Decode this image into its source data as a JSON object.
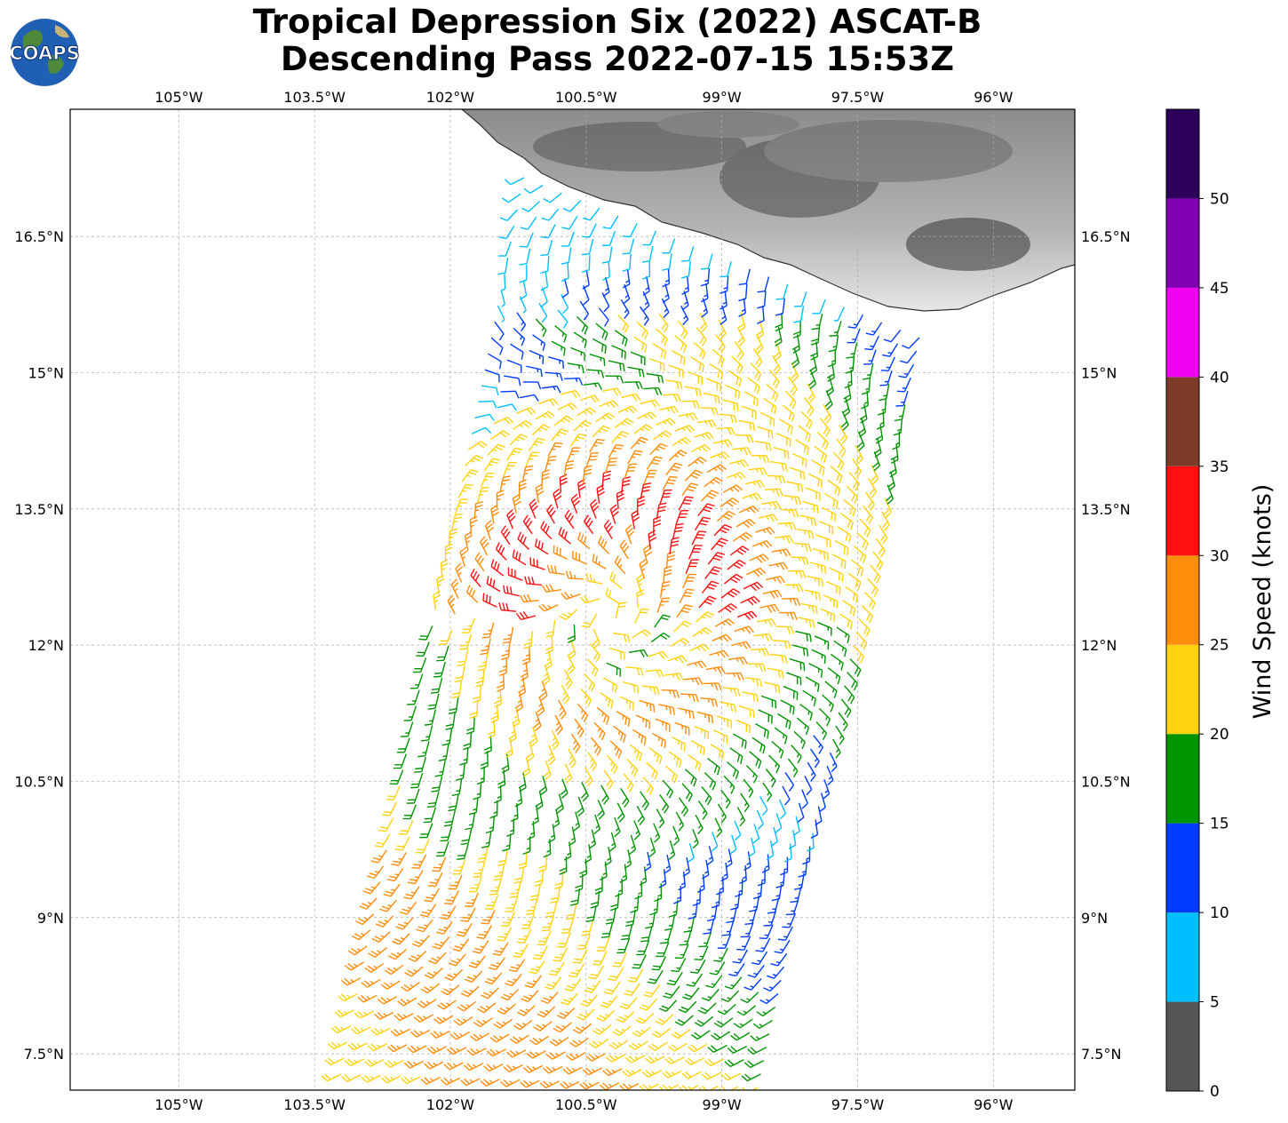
{
  "title": {
    "line1": "Tropical Depression Six (2022) ASCAT-B",
    "line2": "Descending Pass 2022-07-15 15:53Z"
  },
  "logo": {
    "text": "COAPS",
    "icon": "globe-logo"
  },
  "map": {
    "lon_range": [
      -106.2,
      -95.1
    ],
    "lat_range": [
      7.1,
      17.9
    ],
    "lon_ticks": [
      {
        "value": -105,
        "label": "105°W"
      },
      {
        "value": -103.5,
        "label": "103.5°W"
      },
      {
        "value": -102,
        "label": "102°W"
      },
      {
        "value": -100.5,
        "label": "100.5°W"
      },
      {
        "value": -99,
        "label": "99°W"
      },
      {
        "value": -97.5,
        "label": "97.5°W"
      },
      {
        "value": -96,
        "label": "96°W"
      }
    ],
    "lat_ticks": [
      {
        "value": 16.5,
        "label": "16.5°N"
      },
      {
        "value": 15,
        "label": "15°N"
      },
      {
        "value": 13.5,
        "label": "13.5°N"
      },
      {
        "value": 12,
        "label": "12°N"
      },
      {
        "value": 10.5,
        "label": "10.5°N"
      },
      {
        "value": 9,
        "label": "9°N"
      },
      {
        "value": 7.5,
        "label": "7.5°N"
      }
    ],
    "grid": true,
    "land_region": "Mexico coast (top right, terrain shaded)",
    "storm_center": {
      "lon": -100.2,
      "lat": 12.3
    }
  },
  "colorbar": {
    "title": "Wind Speed (knots)",
    "bins": [
      {
        "min": 0,
        "max": 5,
        "color": "#555555"
      },
      {
        "min": 5,
        "max": 10,
        "color": "#00bfff"
      },
      {
        "min": 10,
        "max": 15,
        "color": "#003cff"
      },
      {
        "min": 15,
        "max": 20,
        "color": "#009400"
      },
      {
        "min": 20,
        "max": 25,
        "color": "#ffd20f"
      },
      {
        "min": 25,
        "max": 30,
        "color": "#ff8c0a"
      },
      {
        "min": 30,
        "max": 35,
        "color": "#ff0f0f"
      },
      {
        "min": 35,
        "max": 40,
        "color": "#7d3c28"
      },
      {
        "min": 40,
        "max": 45,
        "color": "#f000f0"
      },
      {
        "min": 45,
        "max": 50,
        "color": "#8200b4"
      },
      {
        "min": 50,
        "max": 55,
        "color": "#2d005a"
      }
    ],
    "tick_labels": [
      "0",
      "5",
      "10",
      "15",
      "20",
      "25",
      "30",
      "35",
      "40",
      "45",
      "50"
    ]
  }
}
